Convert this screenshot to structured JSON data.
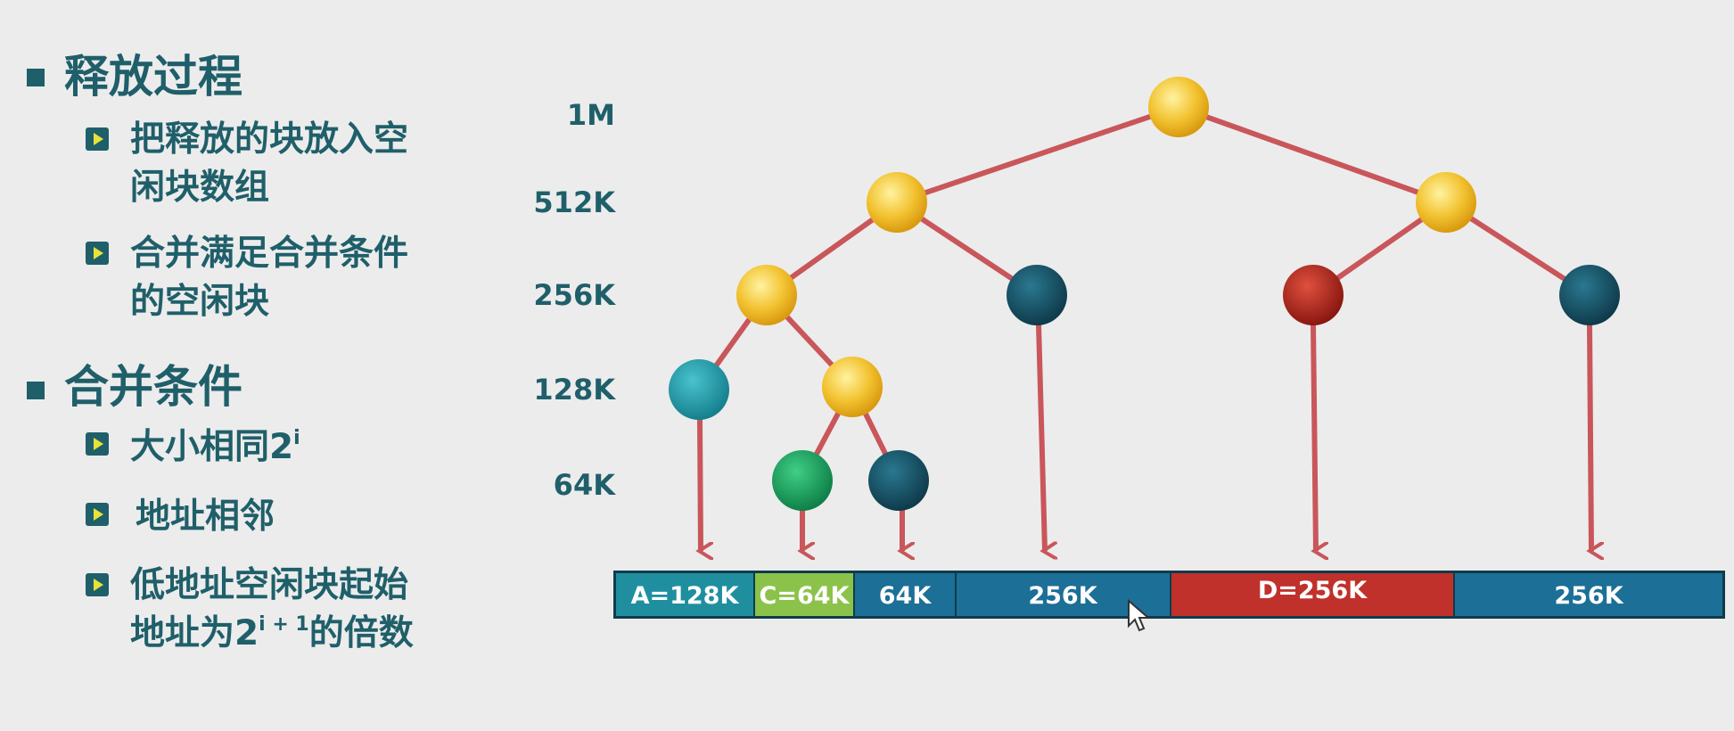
{
  "bullets": {
    "heading1": "释放过程",
    "heading1_items": [
      {
        "line1": "把释放的块放入空",
        "line2": "闲块数组"
      },
      {
        "line1": "合并满足合并条件",
        "line2": "的空闲块"
      }
    ],
    "heading2": "合并条件",
    "heading2_items": [
      {
        "text": "大小相同2",
        "sup": "i"
      },
      {
        "text": "地址相邻"
      },
      {
        "line1": "低地址空闲块起始",
        "line2_pre": "地址为2",
        "line2_sup": "i + 1",
        "line2_post": "的倍数"
      }
    ]
  },
  "levels": [
    "1M",
    "512K",
    "256K",
    "128K",
    "64K"
  ],
  "memory_segments": [
    {
      "label": "A=128K",
      "color": "#1f8fa0"
    },
    {
      "label": "C=64K",
      "color": "#8bc34a"
    },
    {
      "label": "64K",
      "color": "#1c6f97"
    },
    {
      "label": "256K",
      "color": "#1c6f97"
    },
    {
      "label": "D=256K",
      "color": "#c0312b"
    },
    {
      "label": "256K",
      "color": "#1c6f97"
    }
  ],
  "node_colors": {
    "split": "#f2c230",
    "allocated_A": "#1f9aa8",
    "allocated_C": "#1aa260",
    "allocated_D": "#b3261e",
    "free": "#175266"
  },
  "edge_color": "#c9565a"
}
